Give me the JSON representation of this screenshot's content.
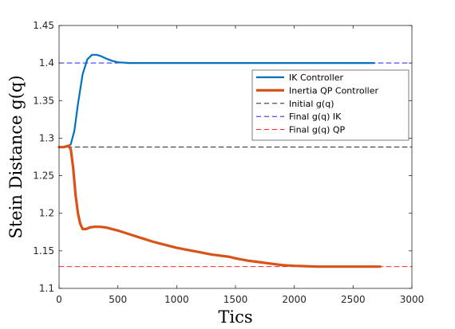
{
  "chart_data": {
    "type": "line",
    "title": "",
    "xlabel": "Tics",
    "ylabel": "Stein Distance g(q)",
    "xlim": [
      0,
      3000
    ],
    "ylim": [
      1.1,
      1.45
    ],
    "xticks": [
      0,
      500,
      1000,
      1500,
      2000,
      2500,
      3000
    ],
    "yticks": [
      1.1,
      1.15,
      1.2,
      1.25,
      1.3,
      1.35,
      1.4,
      1.45
    ],
    "xtick_labels": [
      "0",
      "500",
      "1000",
      "1500",
      "2000",
      "2500",
      "3000"
    ],
    "ytick_labels": [
      "1.1",
      "1.15",
      "1.2",
      "1.25",
      "1.3",
      "1.35",
      "1.4",
      "1.45"
    ],
    "grid": false,
    "legend_position": "top-right",
    "series": [
      {
        "name": "IK Controller",
        "color": "#0072BD",
        "style": "solid",
        "x": [
          0,
          50,
          80,
          100,
          130,
          160,
          200,
          240,
          280,
          320,
          360,
          400,
          450,
          500,
          600,
          800,
          1200,
          1600,
          2000,
          2400,
          2680
        ],
        "y": [
          1.288,
          1.288,
          1.289,
          1.292,
          1.31,
          1.345,
          1.385,
          1.405,
          1.411,
          1.411,
          1.409,
          1.406,
          1.403,
          1.401,
          1.4,
          1.4,
          1.4,
          1.4,
          1.4,
          1.4,
          1.4
        ]
      },
      {
        "name": "Inertia QP Controller",
        "color": "#D95319",
        "style": "solid",
        "x": [
          0,
          40,
          80,
          100,
          120,
          140,
          160,
          180,
          200,
          230,
          260,
          300,
          350,
          400,
          500,
          600,
          700,
          800,
          900,
          1000,
          1100,
          1200,
          1300,
          1400,
          1450,
          1500,
          1600,
          1700,
          1800,
          1900,
          2000,
          2200,
          2400,
          2600,
          2730
        ],
        "y": [
          1.288,
          1.288,
          1.29,
          1.285,
          1.26,
          1.225,
          1.2,
          1.186,
          1.179,
          1.179,
          1.181,
          1.182,
          1.182,
          1.181,
          1.177,
          1.172,
          1.167,
          1.162,
          1.158,
          1.154,
          1.151,
          1.148,
          1.145,
          1.143,
          1.142,
          1.14,
          1.137,
          1.135,
          1.133,
          1.131,
          1.13,
          1.129,
          1.129,
          1.129,
          1.129
        ]
      },
      {
        "name": "Initial g(q)",
        "color": "#000000",
        "style": "dashed",
        "x": [
          0,
          3000
        ],
        "y": [
          1.288,
          1.288
        ]
      },
      {
        "name": "Final g(q) IK",
        "color": "#0000FF",
        "style": "dashed",
        "x": [
          0,
          3000
        ],
        "y": [
          1.4,
          1.4
        ]
      },
      {
        "name": "Final g(q) QP",
        "color": "#FF0000",
        "style": "dashed",
        "x": [
          0,
          3000
        ],
        "y": [
          1.129,
          1.129
        ]
      }
    ]
  }
}
